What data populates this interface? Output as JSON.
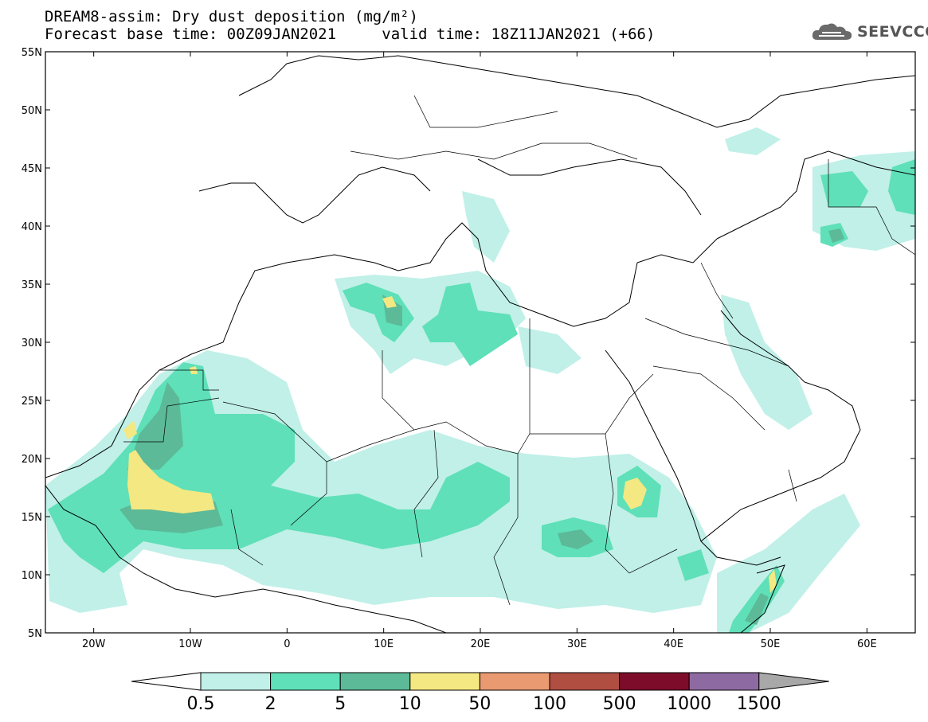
{
  "title": {
    "line1": "DREAM8-assim: Dry dust deposition (mg/m²)",
    "base_label": "Forecast base time: 00Z09JAN2021",
    "valid_label": "valid time: 18Z11JAN2021 (+66)"
  },
  "logo": {
    "text": "SEEVCCC",
    "icon": "cloud-icon"
  },
  "map": {
    "lon_range": [
      -25,
      65
    ],
    "lat_range": [
      5,
      55
    ],
    "lat_ticks": [
      "55N",
      "50N",
      "45N",
      "40N",
      "35N",
      "30N",
      "25N",
      "20N",
      "15N",
      "10N",
      "5N"
    ],
    "lon_ticks": [
      "20W",
      "10W",
      "0",
      "10E",
      "20E",
      "30E",
      "40E",
      "50E",
      "60E"
    ]
  },
  "legend": {
    "colors": [
      "#c0f0e8",
      "#5fe0b8",
      "#5cba98",
      "#f4e882",
      "#e99a70",
      "#b04e42",
      "#7d0c2a",
      "#8e6aa2",
      "#a8a8a8"
    ],
    "labels": [
      "0.5",
      "2",
      "5",
      "10",
      "50",
      "100",
      "500",
      "1000",
      "1500"
    ]
  }
}
